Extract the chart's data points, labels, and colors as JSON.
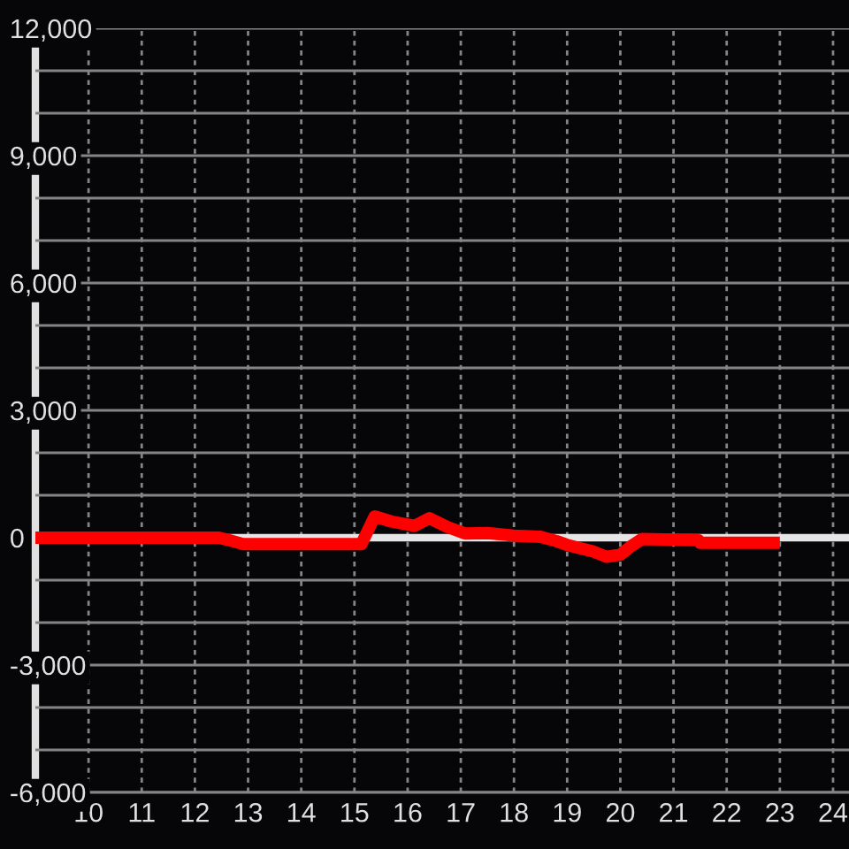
{
  "chart_data": {
    "type": "line",
    "x": [
      9,
      12.45,
      12.65,
      12.9,
      15.13,
      15.38,
      15.7,
      16.13,
      16.41,
      16.75,
      17.08,
      17.5,
      18,
      18.5,
      18.8,
      19,
      19.5,
      19.74,
      20,
      20.2,
      20.41,
      21.47,
      21.5,
      23
    ],
    "series": [
      {
        "color": "#ff0000",
        "values": [
          0,
          0,
          -60,
          -150,
          -150,
          500,
          380,
          280,
          460,
          250,
          100,
          110,
          50,
          20,
          -80,
          -170,
          -330,
          -450,
          -400,
          -200,
          -30,
          -60,
          -120,
          -120
        ]
      }
    ],
    "xlim": [
      9,
      24.3
    ],
    "xticks": [
      10,
      11,
      12,
      13,
      14,
      15,
      16,
      17,
      18,
      19,
      20,
      21,
      22,
      23,
      24
    ],
    "ylim": [
      -6000,
      12000
    ],
    "yticks": [
      {
        "value": -6000,
        "label": "-6,000"
      },
      {
        "value": -5000,
        "label": null
      },
      {
        "value": -4000,
        "label": null
      },
      {
        "value": -3000,
        "label": "-3,000"
      },
      {
        "value": -2000,
        "label": null
      },
      {
        "value": -1000,
        "label": null
      },
      0,
      {
        "value": 1000,
        "label": null
      },
      {
        "value": 2000,
        "label": null
      },
      {
        "value": 3000,
        "label": "3,000"
      },
      {
        "value": 4000,
        "label": null
      },
      {
        "value": 5000,
        "label": null
      },
      {
        "value": 6000,
        "label": "6,000"
      },
      {
        "value": 7000,
        "label": null
      },
      {
        "value": 8000,
        "label": null
      },
      {
        "value": 9000,
        "label": "9,000"
      },
      {
        "value": 10000,
        "label": null
      },
      {
        "value": 11000,
        "label": null
      },
      {
        "value": 12000,
        "label": "12,000"
      }
    ],
    "ref_lines": [
      {
        "axis": "y",
        "value": 0,
        "color": "#e6e6e6"
      }
    ],
    "grid": true,
    "line_style": "solid"
  }
}
